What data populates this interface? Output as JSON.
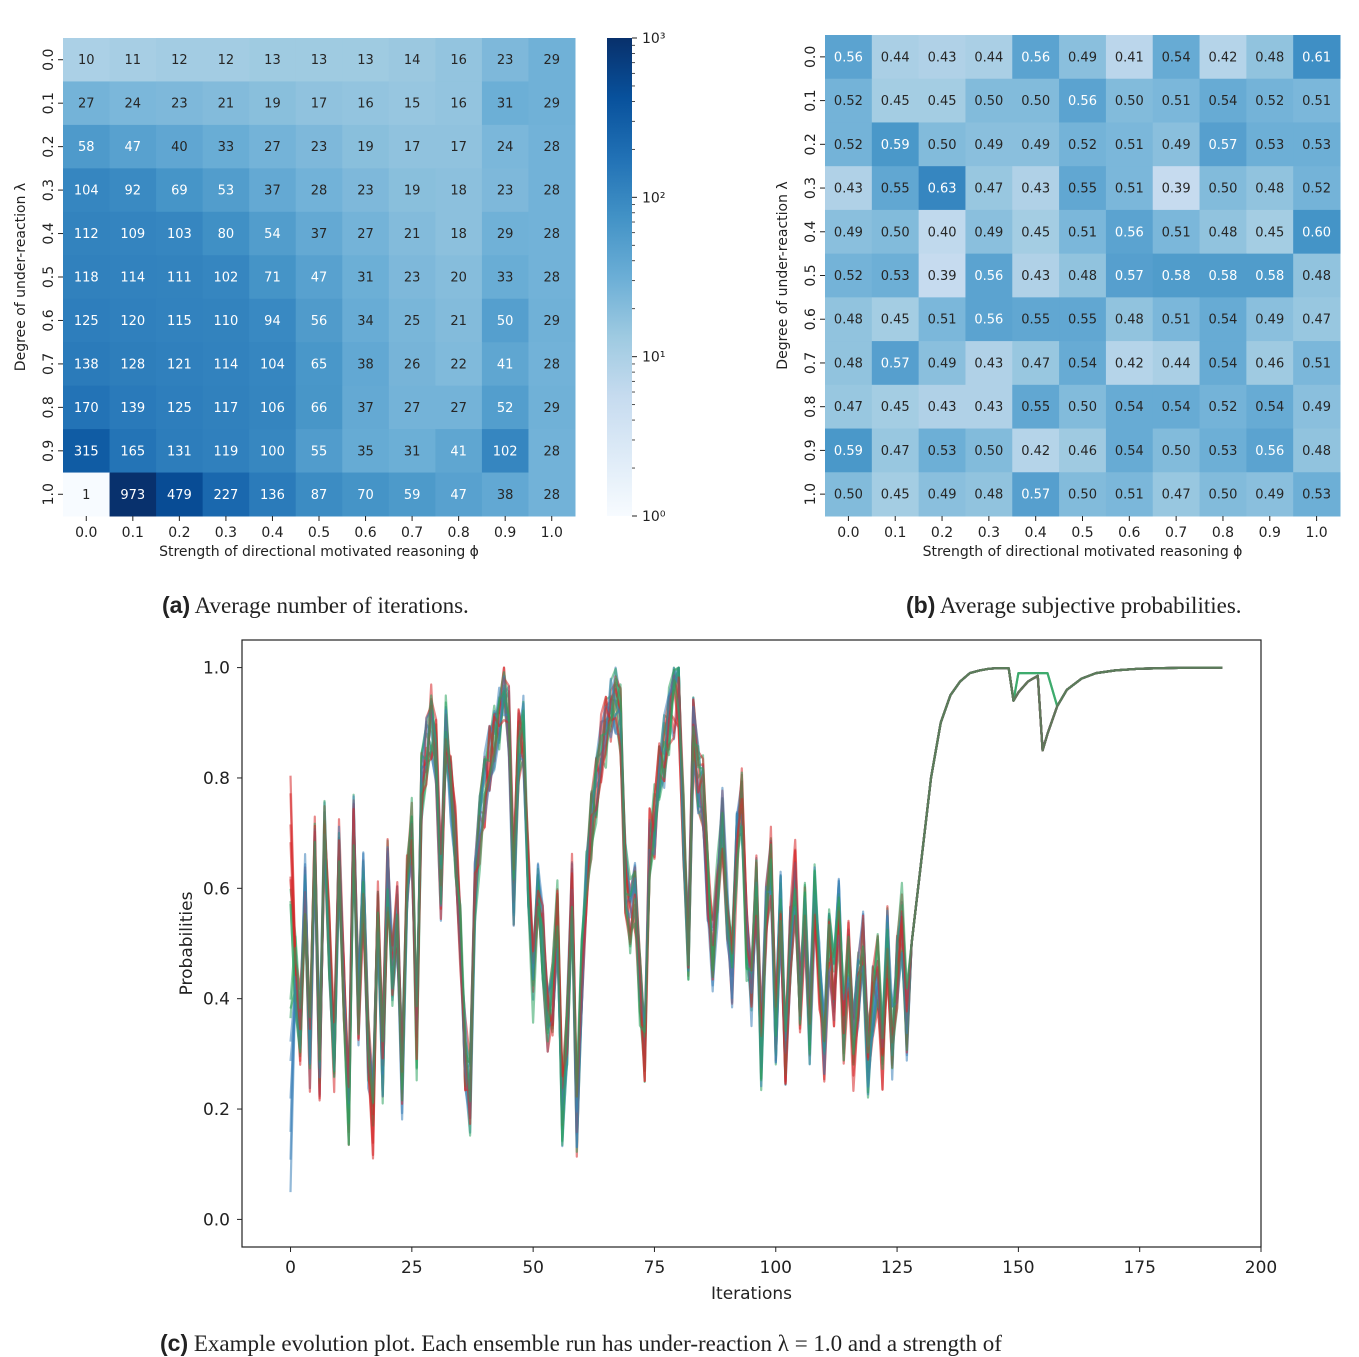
{
  "chart_data": [
    {
      "id": "a",
      "type": "heatmap",
      "caption_tag": "(a)",
      "caption_text": "Average number of iterations.",
      "xlabel": "Strength of directional motivated reasoning ϕ",
      "ylabel": "Degree of under-reaction λ",
      "x_ticks": [
        "0.0",
        "0.1",
        "0.2",
        "0.3",
        "0.4",
        "0.5",
        "0.6",
        "0.7",
        "0.8",
        "0.9",
        "1.0"
      ],
      "y_ticks": [
        "0.0",
        "0.1",
        "0.2",
        "0.3",
        "0.4",
        "0.5",
        "0.6",
        "0.7",
        "0.8",
        "0.9",
        "1.0"
      ],
      "colormap": "Blues",
      "color_scale": "log",
      "vmin": 1,
      "vmax": 1000,
      "colorbar": {
        "ticks": [
          "10⁰",
          "10¹",
          "10²",
          "10³"
        ],
        "values": [
          1,
          10,
          100,
          1000
        ],
        "placement": "right"
      },
      "values": [
        [
          10,
          11,
          12,
          12,
          13,
          13,
          13,
          14,
          16,
          23,
          29
        ],
        [
          27,
          24,
          23,
          21,
          19,
          17,
          16,
          15,
          16,
          31,
          29
        ],
        [
          58,
          47,
          40,
          33,
          27,
          23,
          19,
          17,
          17,
          24,
          28
        ],
        [
          104,
          92,
          69,
          53,
          37,
          28,
          23,
          19,
          18,
          23,
          28
        ],
        [
          112,
          109,
          103,
          80,
          54,
          37,
          27,
          21,
          18,
          29,
          28
        ],
        [
          118,
          114,
          111,
          102,
          71,
          47,
          31,
          23,
          20,
          33,
          28
        ],
        [
          125,
          120,
          115,
          110,
          94,
          56,
          34,
          25,
          21,
          50,
          29
        ],
        [
          138,
          128,
          121,
          114,
          104,
          65,
          38,
          26,
          22,
          41,
          28
        ],
        [
          170,
          139,
          125,
          117,
          106,
          66,
          37,
          27,
          27,
          52,
          29
        ],
        [
          315,
          165,
          131,
          119,
          100,
          55,
          35,
          31,
          41,
          102,
          28
        ],
        [
          1,
          973,
          479,
          227,
          136,
          87,
          70,
          59,
          47,
          38,
          28
        ]
      ]
    },
    {
      "id": "b",
      "type": "heatmap",
      "caption_tag": "(b)",
      "caption_text": "Average subjective probabilities.",
      "xlabel": "Strength of directional motivated reasoning ϕ",
      "ylabel": "Degree of under-reaction λ",
      "x_ticks": [
        "0.0",
        "0.1",
        "0.2",
        "0.3",
        "0.4",
        "0.5",
        "0.6",
        "0.7",
        "0.8",
        "0.9",
        "1.0"
      ],
      "y_ticks": [
        "0.0",
        "0.1",
        "0.2",
        "0.3",
        "0.4",
        "0.5",
        "0.6",
        "0.7",
        "0.8",
        "0.9",
        "1.0"
      ],
      "colormap": "Blues",
      "color_scale": "linear",
      "vmin": 0,
      "vmax": 1,
      "values": [
        [
          0.56,
          0.44,
          0.43,
          0.44,
          0.56,
          0.49,
          0.41,
          0.54,
          0.42,
          0.48,
          0.61
        ],
        [
          0.52,
          0.45,
          0.45,
          0.5,
          0.5,
          0.56,
          0.5,
          0.51,
          0.54,
          0.52,
          0.51
        ],
        [
          0.52,
          0.59,
          0.5,
          0.49,
          0.49,
          0.52,
          0.51,
          0.49,
          0.57,
          0.53,
          0.53
        ],
        [
          0.43,
          0.55,
          0.63,
          0.47,
          0.43,
          0.55,
          0.51,
          0.39,
          0.5,
          0.48,
          0.52
        ],
        [
          0.49,
          0.5,
          0.4,
          0.49,
          0.45,
          0.51,
          0.56,
          0.51,
          0.48,
          0.45,
          0.6
        ],
        [
          0.52,
          0.53,
          0.39,
          0.56,
          0.43,
          0.48,
          0.57,
          0.58,
          0.58,
          0.58,
          0.48
        ],
        [
          0.48,
          0.45,
          0.51,
          0.56,
          0.55,
          0.55,
          0.48,
          0.51,
          0.54,
          0.49,
          0.47
        ],
        [
          0.48,
          0.57,
          0.49,
          0.43,
          0.47,
          0.54,
          0.42,
          0.44,
          0.54,
          0.46,
          0.51
        ],
        [
          0.47,
          0.45,
          0.43,
          0.43,
          0.55,
          0.5,
          0.54,
          0.54,
          0.52,
          0.54,
          0.49
        ],
        [
          0.59,
          0.47,
          0.53,
          0.5,
          0.42,
          0.46,
          0.54,
          0.5,
          0.53,
          0.56,
          0.48
        ],
        [
          0.5,
          0.45,
          0.49,
          0.48,
          0.57,
          0.5,
          0.51,
          0.47,
          0.5,
          0.49,
          0.53
        ]
      ]
    },
    {
      "id": "c",
      "type": "line",
      "caption_tag": "(c)",
      "caption_text": "Example evolution plot. Each ensemble run has under-reaction λ = 1.0 and a strength of …",
      "xlabel": "Iterations",
      "ylabel": "Probabilities",
      "xlim": [
        -10,
        200
      ],
      "ylim": [
        -0.05,
        1.05
      ],
      "x_ticks": [
        0,
        25,
        50,
        75,
        100,
        125,
        150,
        175,
        200
      ],
      "y_ticks": [
        0.0,
        0.2,
        0.4,
        0.6,
        0.8,
        1.0
      ],
      "grid": false,
      "legend": "none",
      "series_colors": {
        "red": "#d62728",
        "green": "#2ca25f",
        "blue": "#3a7fb8"
      },
      "runs_per_color": 6,
      "series_count_note": "many overlapping semi-transparent runs (red, green, blue groups)",
      "representative_path": {
        "x": [
          0,
          1,
          2,
          3,
          4,
          5,
          6,
          7,
          8,
          9,
          10,
          11,
          12,
          13,
          14,
          15,
          16,
          17,
          18,
          19,
          20,
          21,
          22,
          23,
          24,
          25,
          26,
          27,
          28,
          29,
          30,
          31,
          32,
          33,
          34,
          35,
          36,
          37,
          38,
          39,
          40,
          41,
          42,
          43,
          44,
          45,
          46,
          47,
          48,
          49,
          50,
          51,
          52,
          53,
          54,
          55,
          56,
          57,
          58,
          59,
          60,
          61,
          62,
          63,
          64,
          65,
          66,
          67,
          68,
          69,
          70,
          71,
          72,
          73,
          74,
          75,
          76,
          77,
          78,
          79,
          80,
          81,
          82,
          83,
          84,
          85,
          86,
          87,
          88,
          89,
          90,
          91,
          92,
          93,
          94,
          95,
          96,
          97,
          98,
          99,
          100,
          101,
          102,
          103,
          104,
          105,
          106,
          107,
          108,
          109,
          110,
          111,
          112,
          113,
          114,
          115,
          116,
          117,
          118,
          119,
          120,
          121,
          122,
          123,
          124,
          125,
          126,
          127,
          128,
          130,
          132,
          134,
          136,
          138,
          140,
          142,
          144,
          146,
          148,
          149,
          150,
          151,
          152,
          153,
          154,
          155,
          156,
          158,
          160,
          163,
          166,
          170,
          175,
          180,
          186,
          192
        ],
        "y": [
          0.5,
          0.45,
          0.35,
          0.6,
          0.3,
          0.7,
          0.28,
          0.72,
          0.5,
          0.3,
          0.66,
          0.42,
          0.2,
          0.7,
          0.38,
          0.6,
          0.3,
          0.18,
          0.55,
          0.28,
          0.62,
          0.45,
          0.55,
          0.25,
          0.6,
          0.7,
          0.32,
          0.78,
          0.84,
          0.9,
          0.85,
          0.6,
          0.88,
          0.78,
          0.68,
          0.5,
          0.3,
          0.22,
          0.6,
          0.7,
          0.78,
          0.84,
          0.88,
          0.92,
          0.95,
          0.9,
          0.6,
          0.86,
          0.88,
          0.62,
          0.42,
          0.6,
          0.5,
          0.35,
          0.4,
          0.55,
          0.2,
          0.35,
          0.6,
          0.18,
          0.45,
          0.62,
          0.72,
          0.78,
          0.85,
          0.88,
          0.92,
          0.95,
          0.9,
          0.62,
          0.55,
          0.58,
          0.42,
          0.3,
          0.68,
          0.72,
          0.8,
          0.85,
          0.9,
          0.94,
          0.95,
          0.7,
          0.5,
          0.88,
          0.8,
          0.78,
          0.6,
          0.48,
          0.6,
          0.72,
          0.55,
          0.45,
          0.68,
          0.75,
          0.5,
          0.4,
          0.6,
          0.3,
          0.55,
          0.65,
          0.35,
          0.58,
          0.3,
          0.5,
          0.62,
          0.4,
          0.55,
          0.35,
          0.58,
          0.45,
          0.3,
          0.5,
          0.42,
          0.55,
          0.35,
          0.48,
          0.3,
          0.42,
          0.5,
          0.28,
          0.4,
          0.45,
          0.3,
          0.5,
          0.32,
          0.45,
          0.55,
          0.35,
          0.5,
          0.65,
          0.8,
          0.9,
          0.95,
          0.975,
          0.99,
          0.995,
          0.998,
          0.999,
          0.999,
          0.94,
          0.955,
          0.965,
          0.975,
          0.98,
          0.985,
          0.85,
          0.88,
          0.93,
          0.96,
          0.98,
          0.99,
          0.995,
          0.998,
          0.999,
          1.0,
          1.0
        ]
      }
    }
  ],
  "captions": {
    "a": {
      "tag": "(a)",
      "text": "Average number of iterations."
    },
    "b": {
      "tag": "(b)",
      "text": "Average subjective probabilities."
    },
    "c": {
      "tag": "(c)",
      "text": "Example evolution plot. Each ensemble run has under-reaction λ = 1.0 and a strength of"
    }
  }
}
